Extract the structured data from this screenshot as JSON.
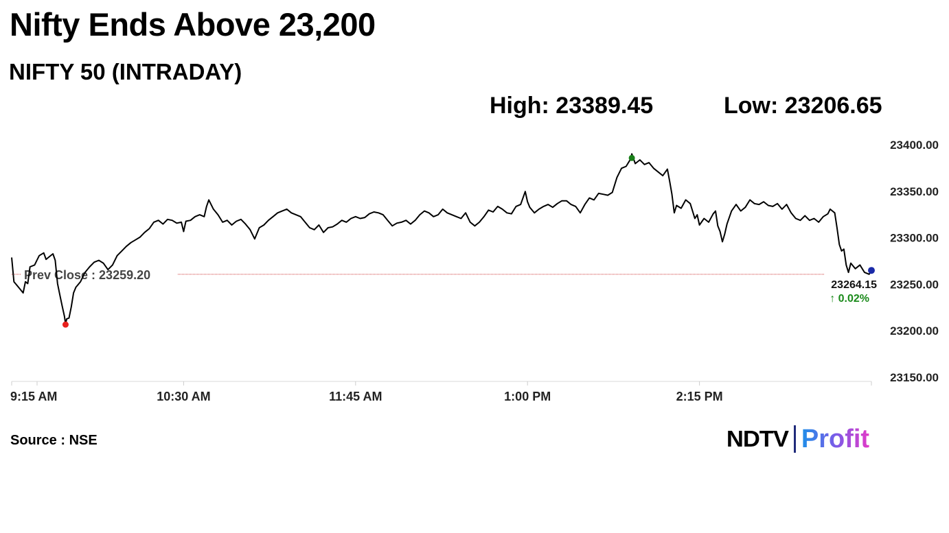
{
  "header": {
    "title": "Nifty Ends Above 23,200",
    "subtitle": "NIFTY 50 (INTRADAY)",
    "high_text": "High: 23389.45",
    "low_text": "Low: 23206.65"
  },
  "footer": {
    "source": "Source : NSE",
    "logo_ndtv": "NDTV",
    "logo_profit": "Profit"
  },
  "chart_data": {
    "type": "line",
    "title": "NIFTY 50 (INTRADAY)",
    "xlabel": "",
    "ylabel": "",
    "ylim": [
      23150,
      23400
    ],
    "y_ticks": [
      "23400.00",
      "23350.00",
      "23300.00",
      "23250.00",
      "23200.00",
      "23150.00"
    ],
    "x_ticks": [
      "9:15 AM",
      "10:30 AM",
      "11:45 AM",
      "1:00 PM",
      "2:15 PM"
    ],
    "x_tick_minutes": [
      0,
      75,
      150,
      225,
      300
    ],
    "x_range_minutes": [
      0,
      375
    ],
    "grid": false,
    "prev_close": 23259.2,
    "prev_close_label": "Prev Close : 23259.20",
    "last_value_label": "23264.15",
    "change_label": "↑ 0.02%",
    "colors": {
      "line": "#000000",
      "prev_close": "#cc3333",
      "high_marker": "#1a7f1a",
      "low_marker": "#e8201e",
      "last_marker": "#1a2aa8",
      "change": "#1a8a1a"
    },
    "high_point": {
      "minute": 270.5,
      "value": 23389.45
    },
    "low_point": {
      "minute": 23.5,
      "value": 23206.65
    },
    "last_point": {
      "minute": 375,
      "value": 23264.15
    },
    "series": [
      {
        "values": [
          [
            0,
            23278
          ],
          [
            1,
            23252
          ],
          [
            3,
            23246
          ],
          [
            5,
            23240
          ],
          [
            6,
            23252
          ],
          [
            7,
            23250
          ],
          [
            8,
            23268
          ],
          [
            10,
            23270
          ],
          [
            11,
            23275
          ],
          [
            12,
            23280
          ],
          [
            14,
            23283
          ],
          [
            15,
            23276
          ],
          [
            16,
            23278
          ],
          [
            18,
            23282
          ],
          [
            19,
            23275
          ],
          [
            20,
            23250
          ],
          [
            21,
            23238
          ],
          [
            22,
            23226
          ],
          [
            23,
            23215
          ],
          [
            23.5,
            23206.65
          ],
          [
            24,
            23212
          ],
          [
            25,
            23213
          ],
          [
            26,
            23225
          ],
          [
            27,
            23240
          ],
          [
            28,
            23246
          ],
          [
            30,
            23252
          ],
          [
            32,
            23262
          ],
          [
            34,
            23268
          ],
          [
            36,
            23273
          ],
          [
            38,
            23275
          ],
          [
            40,
            23272
          ],
          [
            42,
            23265
          ],
          [
            44,
            23270
          ],
          [
            46,
            23280
          ],
          [
            48,
            23285
          ],
          [
            50,
            23290
          ],
          [
            52,
            23294
          ],
          [
            54,
            23297
          ],
          [
            56,
            23300
          ],
          [
            58,
            23305
          ],
          [
            60,
            23309
          ],
          [
            62,
            23316
          ],
          [
            64,
            23318
          ],
          [
            66,
            23314
          ],
          [
            68,
            23319
          ],
          [
            70,
            23318
          ],
          [
            72,
            23315
          ],
          [
            74,
            23316
          ],
          [
            75,
            23306
          ],
          [
            76,
            23317
          ],
          [
            78,
            23318
          ],
          [
            80,
            23322
          ],
          [
            82,
            23324
          ],
          [
            84,
            23322
          ],
          [
            85,
            23333
          ],
          [
            86,
            23340
          ],
          [
            88,
            23330
          ],
          [
            90,
            23324
          ],
          [
            92,
            23316
          ],
          [
            94,
            23318
          ],
          [
            96,
            23313
          ],
          [
            98,
            23317
          ],
          [
            100,
            23319
          ],
          [
            102,
            23314
          ],
          [
            104,
            23308
          ],
          [
            106,
            23298
          ],
          [
            108,
            23310
          ],
          [
            110,
            23313
          ],
          [
            112,
            23318
          ],
          [
            114,
            23322
          ],
          [
            116,
            23326
          ],
          [
            118,
            23328
          ],
          [
            120,
            23330
          ],
          [
            122,
            23326
          ],
          [
            124,
            23324
          ],
          [
            126,
            23322
          ],
          [
            128,
            23316
          ],
          [
            130,
            23310
          ],
          [
            132,
            23308
          ],
          [
            134,
            23313
          ],
          [
            136,
            23305
          ],
          [
            138,
            23310
          ],
          [
            140,
            23311
          ],
          [
            142,
            23314
          ],
          [
            144,
            23318
          ],
          [
            146,
            23316
          ],
          [
            148,
            23320
          ],
          [
            150,
            23322
          ],
          [
            152,
            23320
          ],
          [
            154,
            23321
          ],
          [
            156,
            23325
          ],
          [
            158,
            23327
          ],
          [
            160,
            23326
          ],
          [
            162,
            23324
          ],
          [
            164,
            23318
          ],
          [
            166,
            23312
          ],
          [
            168,
            23315
          ],
          [
            170,
            23316
          ],
          [
            172,
            23318
          ],
          [
            174,
            23314
          ],
          [
            176,
            23318
          ],
          [
            178,
            23324
          ],
          [
            180,
            23328
          ],
          [
            182,
            23326
          ],
          [
            184,
            23322
          ],
          [
            186,
            23324
          ],
          [
            188,
            23330
          ],
          [
            190,
            23326
          ],
          [
            192,
            23324
          ],
          [
            194,
            23322
          ],
          [
            196,
            23320
          ],
          [
            198,
            23326
          ],
          [
            200,
            23316
          ],
          [
            202,
            23312
          ],
          [
            204,
            23316
          ],
          [
            206,
            23322
          ],
          [
            208,
            23329
          ],
          [
            210,
            23327
          ],
          [
            212,
            23333
          ],
          [
            214,
            23330
          ],
          [
            216,
            23326
          ],
          [
            218,
            23325
          ],
          [
            220,
            23333
          ],
          [
            222,
            23335
          ],
          [
            224,
            23349
          ],
          [
            225,
            23338
          ],
          [
            226,
            23332
          ],
          [
            228,
            23326
          ],
          [
            230,
            23330
          ],
          [
            232,
            23333
          ],
          [
            234,
            23335
          ],
          [
            236,
            23332
          ],
          [
            238,
            23336
          ],
          [
            240,
            23339
          ],
          [
            242,
            23339
          ],
          [
            244,
            23335
          ],
          [
            246,
            23333
          ],
          [
            248,
            23326
          ],
          [
            250,
            23335
          ],
          [
            252,
            23342
          ],
          [
            254,
            23340
          ],
          [
            256,
            23347
          ],
          [
            258,
            23346
          ],
          [
            260,
            23345
          ],
          [
            262,
            23348
          ],
          [
            264,
            23364
          ],
          [
            266,
            23374
          ],
          [
            268,
            23376
          ],
          [
            270,
            23384
          ],
          [
            270.5,
            23389.45
          ],
          [
            272,
            23379
          ],
          [
            274,
            23383
          ],
          [
            276,
            23378
          ],
          [
            278,
            23380
          ],
          [
            280,
            23374
          ],
          [
            282,
            23370
          ],
          [
            284,
            23366
          ],
          [
            286,
            23373
          ],
          [
            287,
            23360
          ],
          [
            288,
            23346
          ],
          [
            289,
            23326
          ],
          [
            290,
            23334
          ],
          [
            292,
            23331
          ],
          [
            294,
            23340
          ],
          [
            296,
            23336
          ],
          [
            298,
            23320
          ],
          [
            299,
            23324
          ],
          [
            300,
            23313
          ],
          [
            302,
            23320
          ],
          [
            304,
            23316
          ],
          [
            306,
            23325
          ],
          [
            307,
            23328
          ],
          [
            308,
            23312
          ],
          [
            309,
            23306
          ],
          [
            310,
            23295
          ],
          [
            311,
            23303
          ],
          [
            312,
            23314
          ],
          [
            314,
            23328
          ],
          [
            316,
            23335
          ],
          [
            318,
            23328
          ],
          [
            320,
            23332
          ],
          [
            322,
            23340
          ],
          [
            324,
            23336
          ],
          [
            326,
            23335
          ],
          [
            328,
            23338
          ],
          [
            330,
            23334
          ],
          [
            332,
            23333
          ],
          [
            334,
            23336
          ],
          [
            336,
            23330
          ],
          [
            338,
            23335
          ],
          [
            340,
            23326
          ],
          [
            342,
            23320
          ],
          [
            344,
            23318
          ],
          [
            346,
            23323
          ],
          [
            348,
            23318
          ],
          [
            350,
            23320
          ],
          [
            352,
            23316
          ],
          [
            354,
            23322
          ],
          [
            356,
            23325
          ],
          [
            357,
            23330
          ],
          [
            359,
            23326
          ],
          [
            360,
            23310
          ],
          [
            361,
            23292
          ],
          [
            362,
            23285
          ],
          [
            363,
            23287
          ],
          [
            364,
            23270
          ],
          [
            365,
            23262
          ],
          [
            366,
            23272
          ],
          [
            368,
            23266
          ],
          [
            370,
            23270
          ],
          [
            372,
            23262
          ],
          [
            374,
            23260
          ],
          [
            375,
            23264.15
          ]
        ]
      }
    ]
  }
}
